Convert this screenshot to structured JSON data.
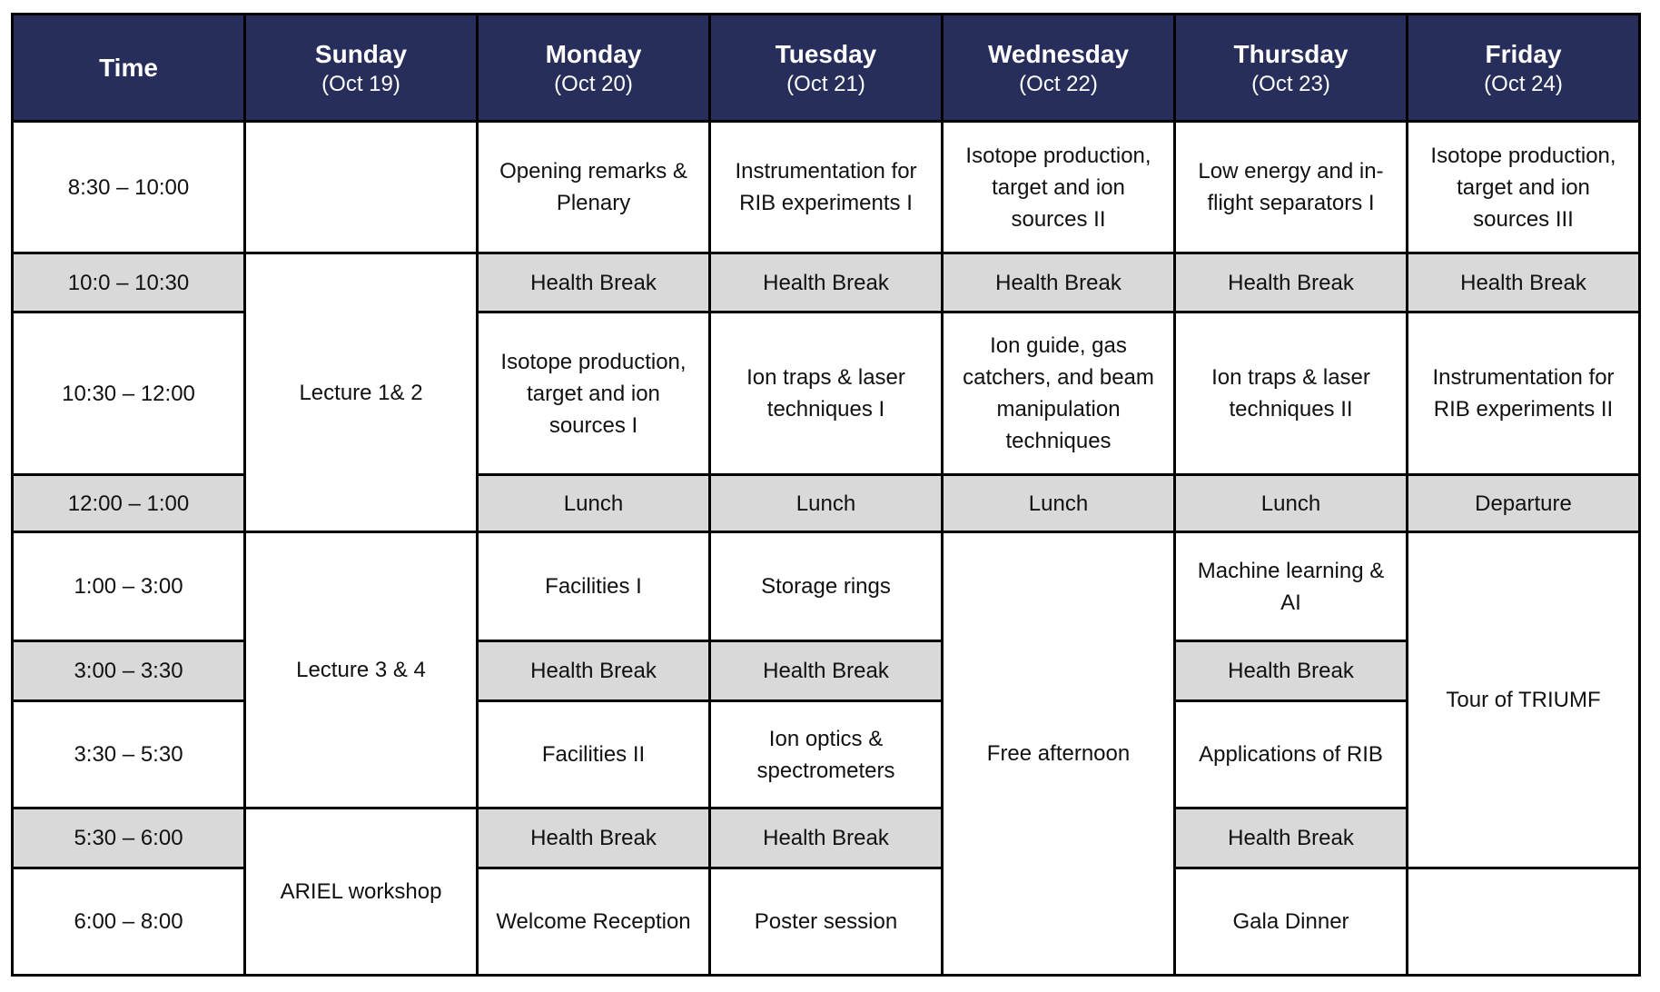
{
  "header": {
    "time_label": "Time",
    "days": [
      {
        "day": "Sunday",
        "date": "(Oct 19)"
      },
      {
        "day": "Monday",
        "date": "(Oct 20)"
      },
      {
        "day": "Tuesday",
        "date": "(Oct 21)"
      },
      {
        "day": "Wednesday",
        "date": "(Oct 22)"
      },
      {
        "day": "Thursday",
        "date": "(Oct 23)"
      },
      {
        "day": "Friday",
        "date": "(Oct 24)"
      }
    ]
  },
  "colors": {
    "header_bg": "#272e5c",
    "break_bg": "#d9d9d9"
  },
  "rows": [
    {
      "time": "8:30 – 10:00",
      "shaded": false,
      "cells": [
        {
          "text": ""
        },
        {
          "text": "Opening remarks & Plenary"
        },
        {
          "text": "Instrumentation for RIB experiments I"
        },
        {
          "text": "Isotope production, target and ion sources II"
        },
        {
          "text": "Low energy and in-flight separators I"
        },
        {
          "text": "Isotope production, target and ion sources III"
        }
      ]
    },
    {
      "time": "10:0 – 10:30",
      "shaded": true,
      "cells": [
        {
          "text": "Lecture 1& 2",
          "rowspan": 3,
          "shaded": false
        },
        {
          "text": "Health Break"
        },
        {
          "text": "Health Break"
        },
        {
          "text": "Health Break"
        },
        {
          "text": "Health Break"
        },
        {
          "text": "Health Break"
        }
      ]
    },
    {
      "time": "10:30 – 12:00",
      "shaded": false,
      "cells": [
        {
          "text": "Isotope production, target and ion sources I"
        },
        {
          "text": "Ion traps & laser techniques I"
        },
        {
          "text": "Ion guide, gas catchers, and beam manipulation techniques"
        },
        {
          "text": "Ion traps & laser techniques II"
        },
        {
          "text": "Instrumentation for RIB experiments II"
        }
      ]
    },
    {
      "time": "12:00 – 1:00",
      "shaded": true,
      "cells": [
        {
          "text": "Lunch"
        },
        {
          "text": "Lunch"
        },
        {
          "text": "Lunch"
        },
        {
          "text": "Lunch"
        },
        {
          "text": "Departure"
        }
      ]
    },
    {
      "time": "1:00 – 3:00",
      "shaded": false,
      "cells": [
        {
          "text": "Lecture 3 & 4",
          "rowspan": 3
        },
        {
          "text": "Facilities I"
        },
        {
          "text": "Storage rings"
        },
        {
          "text": "Free afternoon",
          "rowspan": 5
        },
        {
          "text": "Machine learning & AI"
        },
        {
          "text": "Tour of TRIUMF",
          "rowspan": 4
        }
      ]
    },
    {
      "time": "3:00 – 3:30",
      "shaded": true,
      "cells": [
        {
          "text": "Health Break"
        },
        {
          "text": "Health Break"
        },
        {
          "text": "Health Break"
        }
      ]
    },
    {
      "time": "3:30 – 5:30",
      "shaded": false,
      "cells": [
        {
          "text": "Facilities II"
        },
        {
          "text": "Ion optics & spectrometers"
        },
        {
          "text": "Applications of RIB"
        }
      ]
    },
    {
      "time": "5:30 – 6:00",
      "shaded": true,
      "cells": [
        {
          "text": "ARIEL workshop",
          "rowspan": 2,
          "shaded": false
        },
        {
          "text": "Health Break"
        },
        {
          "text": "Health Break"
        },
        {
          "text": "Health Break"
        }
      ]
    },
    {
      "time": "6:00 – 8:00",
      "shaded": false,
      "cells": [
        {
          "text": "Welcome Reception"
        },
        {
          "text": "Poster session"
        },
        {
          "text": "Gala Dinner"
        },
        {
          "text": ""
        }
      ]
    }
  ]
}
